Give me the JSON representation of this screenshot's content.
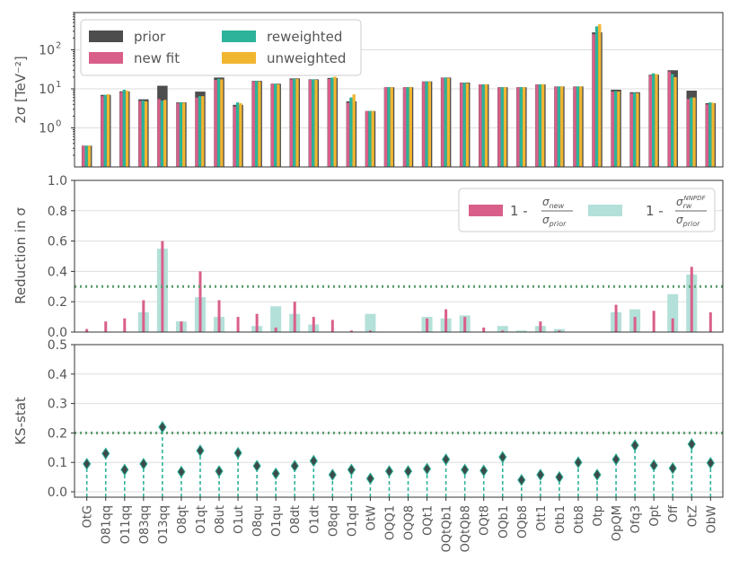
{
  "colors": {
    "prior": "#4d4d4d",
    "new_fit": "#d95f8a",
    "reweighted": "#2db39a",
    "unweighted": "#f1b630",
    "reduction_rw": "#b3e0d8",
    "threshold": "#5a9e6f",
    "stem": "#2db39a",
    "marker": "#3d4a4a",
    "grid": "#dddddd",
    "axis": "#333333"
  },
  "chart_data": [
    {
      "type": "bar",
      "title": "",
      "ylabel": "2σ [TeV⁻²]",
      "yscale": "log",
      "ylim": [
        0.1,
        900
      ],
      "yticks": [
        {
          "v": 1,
          "label": "10"
        },
        {
          "v": 10,
          "label": "10"
        },
        {
          "v": 100,
          "label": "10"
        }
      ],
      "ytick_exponents": [
        "0",
        "1",
        "2"
      ],
      "legend": {
        "position": "top-left",
        "entries": [
          "prior",
          "new fit",
          "reweighted",
          "unweighted"
        ]
      },
      "categories": [
        "OtG",
        "O81qq",
        "O11qq",
        "O83qq",
        "O13qq",
        "O8qt",
        "O1qt",
        "O8ut",
        "O1ut",
        "O8qu",
        "O1qu",
        "O8dt",
        "O1dt",
        "O8qd",
        "O1qd",
        "OtW",
        "OQQ1",
        "OQQ8",
        "OQt1",
        "OQtQb1",
        "OQtQb8",
        "OQt8",
        "OQb1",
        "OQb8",
        "Ott1",
        "Otb1",
        "Otb8",
        "Otp",
        "OpQM",
        "Ofq3",
        "Opt",
        "Off",
        "OtZ",
        "ObW"
      ],
      "series": [
        {
          "name": "prior",
          "values": [
            0.35,
            7.0,
            8.6,
            5.4,
            12.0,
            4.5,
            8.5,
            19.5,
            3.9,
            16.0,
            13.5,
            18.5,
            17.5,
            19.0,
            4.8,
            2.7,
            11.0,
            11.0,
            15.5,
            19.5,
            14.5,
            13.0,
            11.0,
            11.0,
            13.0,
            11.5,
            11.5,
            280,
            9.5,
            8.2,
            23.0,
            30.0,
            9.0,
            4.3
          ]
        },
        {
          "name": "new fit",
          "values": [
            0.35,
            6.5,
            8.2,
            4.9,
            5.5,
            4.3,
            6.0,
            17.0,
            3.5,
            15.5,
            13.2,
            17.5,
            17.0,
            18.0,
            4.4,
            2.7,
            11.0,
            11.0,
            15.2,
            19.3,
            14.3,
            13.0,
            10.8,
            11.0,
            13.0,
            11.3,
            11.3,
            250,
            8.5,
            7.6,
            22.0,
            28.0,
            5.5,
            4.0
          ]
        },
        {
          "name": "reweighted",
          "values": [
            0.35,
            7.0,
            9.5,
            5.0,
            5.0,
            4.5,
            6.5,
            18.0,
            4.5,
            16.0,
            13.5,
            18.0,
            17.5,
            19.5,
            6.0,
            2.7,
            11.0,
            11.0,
            15.5,
            19.5,
            14.5,
            13.0,
            11.0,
            11.0,
            13.0,
            11.5,
            11.5,
            400,
            8.8,
            8.0,
            25.0,
            24.0,
            6.0,
            4.5
          ]
        },
        {
          "name": "unweighted",
          "values": [
            0.35,
            7.3,
            9.0,
            4.8,
            5.2,
            4.4,
            6.5,
            17.5,
            4.3,
            15.5,
            13.0,
            17.8,
            17.0,
            20.5,
            7.2,
            2.7,
            11.0,
            11.0,
            15.2,
            19.0,
            14.0,
            13.0,
            11.0,
            11.0,
            13.2,
            11.5,
            11.5,
            450,
            8.6,
            7.8,
            24.0,
            20.0,
            6.0,
            4.4
          ]
        }
      ]
    },
    {
      "type": "bar",
      "ylabel": "Reduction in σ",
      "ylim": [
        0,
        1.0
      ],
      "yticks": [
        0.0,
        0.2,
        0.4,
        0.6,
        0.8,
        1.0
      ],
      "threshold": 0.3,
      "legend": {
        "position": "top-right",
        "entries": [
          "1 - σ_new/σ_prior",
          "1 - σ_rw^NNPDF/σ_prior"
        ]
      },
      "legend_labels": {
        "pre": "1 - ",
        "new_num": "σ",
        "new_num_sub": "new",
        "new_den": "σ",
        "new_den_sub": "prior",
        "rw_num": "σ",
        "rw_num_sub": "rw",
        "rw_num_sup": "NNPDF",
        "rw_den": "σ",
        "rw_den_sub": "prior"
      },
      "categories_ref": "same as panel 1",
      "series": [
        {
          "name": "1 - σ_new/σ_prior",
          "values": [
            0.02,
            0.07,
            0.09,
            0.21,
            0.6,
            0.07,
            0.4,
            0.21,
            0.1,
            0.12,
            0.03,
            0.2,
            0.1,
            0.08,
            0.01,
            0.01,
            0.0,
            0.0,
            0.09,
            0.15,
            0.1,
            0.03,
            0.01,
            0.0,
            0.07,
            0.01,
            0.0,
            0.0,
            0.18,
            0.1,
            0.14,
            0.09,
            0.43,
            0.13
          ]
        },
        {
          "name": "1 - σ_rw^NNPDF/σ_prior",
          "values": [
            0.0,
            0.0,
            0.0,
            0.13,
            0.55,
            0.07,
            0.23,
            0.1,
            0.0,
            0.04,
            0.17,
            0.12,
            0.05,
            0.0,
            0.0,
            0.12,
            0.0,
            0.0,
            0.1,
            0.09,
            0.11,
            0.0,
            0.04,
            0.01,
            0.04,
            0.02,
            0.0,
            0.0,
            0.13,
            0.15,
            0.0,
            0.25,
            0.38,
            0.0
          ]
        }
      ]
    },
    {
      "type": "scatter",
      "ylabel": "KS-stat",
      "ylim": [
        0,
        0.5
      ],
      "yticks": [
        0.0,
        0.1,
        0.2,
        0.3,
        0.4,
        0.5
      ],
      "threshold": 0.2,
      "categories_ref": "same as panel 1",
      "values": [
        0.095,
        0.13,
        0.075,
        0.095,
        0.22,
        0.068,
        0.14,
        0.07,
        0.132,
        0.088,
        0.062,
        0.088,
        0.105,
        0.058,
        0.075,
        0.045,
        0.07,
        0.07,
        0.078,
        0.11,
        0.075,
        0.072,
        0.118,
        0.04,
        0.058,
        0.05,
        0.1,
        0.058,
        0.11,
        0.158,
        0.09,
        0.08,
        0.162,
        0.098
      ]
    }
  ]
}
